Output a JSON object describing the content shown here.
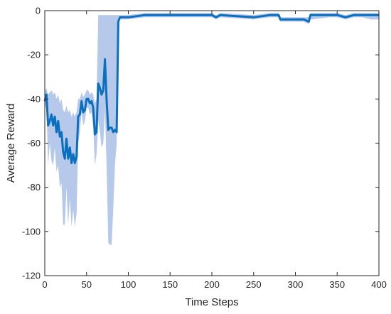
{
  "chart_data": {
    "type": "line",
    "xlabel": "Time Steps",
    "ylabel": "Average Reward",
    "xlim": [
      0,
      400
    ],
    "ylim": [
      -120,
      0
    ],
    "xticks": [
      0,
      50,
      100,
      150,
      200,
      250,
      300,
      350,
      400
    ],
    "yticks": [
      -120,
      -100,
      -80,
      -60,
      -40,
      -20,
      0
    ],
    "grid": false,
    "colors": {
      "line": "#0b6fc0",
      "band": "#a9bfe6",
      "axis": "#262626"
    },
    "series": [
      {
        "x": [
          0,
          2,
          4,
          6,
          8,
          10,
          12,
          14,
          16,
          18,
          20,
          22,
          24,
          26,
          28,
          30,
          32,
          34,
          36,
          38,
          40,
          42,
          44,
          46,
          48,
          50,
          52,
          54,
          56,
          58,
          60,
          62,
          64,
          66,
          68,
          70,
          72,
          74,
          76,
          78,
          80,
          82,
          84,
          86,
          88,
          90,
          100,
          120,
          150,
          200,
          205,
          210,
          250,
          270,
          280,
          282,
          300,
          310,
          316,
          318,
          320,
          340,
          350,
          360,
          370,
          380,
          390,
          400
        ],
        "y": [
          -41,
          -38,
          -52,
          -50,
          -47,
          -52,
          -48,
          -55,
          -50,
          -57,
          -55,
          -64,
          -67,
          -58,
          -67,
          -62,
          -69,
          -65,
          -69,
          -66,
          -48,
          -47,
          -41,
          -46,
          -45,
          -40,
          -40,
          -42,
          -41,
          -44,
          -56,
          -55,
          -33,
          -35,
          -38,
          -36,
          -22,
          -40,
          -54,
          -53,
          -53,
          -55,
          -54,
          -55,
          -5,
          -3,
          -3,
          -2,
          -2,
          -2,
          -3,
          -2,
          -3,
          -2,
          -2,
          -4,
          -4,
          -4,
          -5,
          -2,
          -2,
          -2,
          -2,
          -3,
          -2,
          -2,
          -2,
          -2
        ],
        "lower": [
          -45,
          -42,
          -70,
          -60,
          -68,
          -70,
          -62,
          -73,
          -70,
          -80,
          -78,
          -97,
          -97,
          -80,
          -97,
          -85,
          -98,
          -90,
          -98,
          -92,
          -60,
          -55,
          -46,
          -52,
          -50,
          -44,
          -44,
          -47,
          -46,
          -52,
          -70,
          -65,
          -50,
          -55,
          -62,
          -60,
          -45,
          -70,
          -105,
          -106,
          -106,
          -90,
          -70,
          -60,
          -7,
          -4,
          -4,
          -3,
          -3,
          -3,
          -4,
          -3,
          -4,
          -3,
          -3,
          -5,
          -5,
          -5,
          -6,
          -4,
          -4,
          -3,
          -3,
          -4,
          -3,
          -3,
          -4,
          -4
        ],
        "upper": [
          -37,
          -35,
          -38,
          -37,
          -36,
          -38,
          -37,
          -40,
          -38,
          -42,
          -40,
          -45,
          -46,
          -43,
          -46,
          -45,
          -48,
          -46,
          -48,
          -46,
          -40,
          -40,
          -37,
          -39,
          -38,
          -36,
          -36,
          -38,
          -37,
          -38,
          -42,
          -40,
          -2,
          -2,
          -2,
          -2,
          -2,
          -2,
          -2,
          -2,
          -2,
          -2,
          -2,
          -2,
          -2,
          -2,
          -2,
          -1,
          -1,
          -1,
          -2,
          -1,
          -2,
          -1,
          -1,
          -3,
          -3,
          -3,
          -3,
          -1,
          -1,
          -1,
          -1,
          -2,
          -1,
          -1,
          -1,
          -1
        ]
      }
    ]
  }
}
